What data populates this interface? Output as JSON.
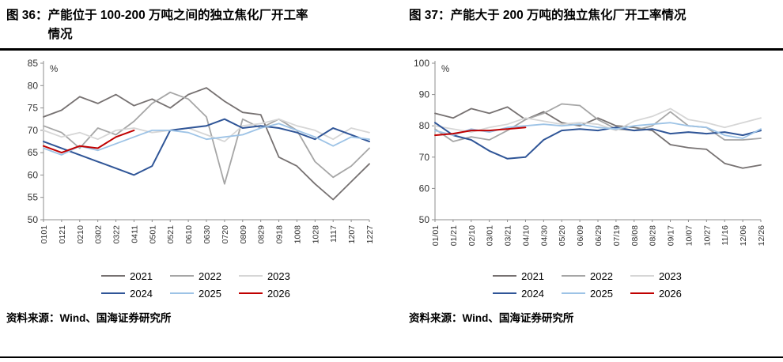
{
  "chart_data": [
    {
      "type": "line",
      "fig_label": "图 36：",
      "title": "产能位于 100-200 万吨之间的独立焦化厂开工率情况",
      "unit": "%",
      "ylim": [
        50,
        85
      ],
      "ytick_step": 5,
      "grid": false,
      "legend_position": "bottom",
      "source": "资料来源：Wind、国海证券研究所",
      "categories": [
        "0101",
        "0121",
        "0210",
        "0302",
        "0322",
        "0411",
        "0501",
        "0521",
        "0610",
        "0630",
        "0720",
        "0809",
        "0829",
        "0918",
        "1008",
        "1028",
        "1117",
        "1207",
        "1227"
      ],
      "series": [
        {
          "name": "2021",
          "color": "#767171",
          "values": [
            73,
            74.5,
            77.5,
            76,
            78,
            75.5,
            77,
            75,
            78,
            79.5,
            76.5,
            74,
            73.5,
            64,
            62,
            58,
            54.5,
            58.5,
            62.5
          ]
        },
        {
          "name": "2022",
          "color": "#a6a6a6",
          "values": [
            71,
            69.5,
            66,
            70.5,
            69,
            72,
            76,
            78.5,
            77,
            73,
            58,
            72.5,
            70.5,
            72.5,
            70,
            63,
            59.5,
            62,
            66
          ]
        },
        {
          "name": "2023",
          "color": "#d6d6d6",
          "values": [
            70,
            68.5,
            69.5,
            68,
            70,
            70.5,
            69.5,
            70,
            70.5,
            69,
            67.5,
            71,
            71.5,
            72.5,
            71,
            70,
            68,
            70.5,
            69.5
          ]
        },
        {
          "name": "2024",
          "color": "#2f5597",
          "values": [
            67.5,
            66,
            64.5,
            63,
            61.5,
            60,
            62,
            70,
            70.5,
            71,
            72.5,
            70.5,
            71,
            70.5,
            69.5,
            68,
            70.5,
            69,
            67.5
          ]
        },
        {
          "name": "2025",
          "color": "#9dc3e6",
          "values": [
            66,
            64.5,
            66.5,
            65.5,
            67,
            68.5,
            70,
            70,
            69.5,
            68,
            68.5,
            69,
            70.5,
            71.5,
            70,
            68.5,
            66.5,
            68.5,
            68
          ]
        },
        {
          "name": "2026",
          "color": "#c00000",
          "values": [
            66.5,
            65,
            66.5,
            66,
            68.5,
            70,
            null,
            null,
            null,
            null,
            null,
            null,
            null,
            null,
            null,
            null,
            null,
            null,
            null
          ]
        }
      ]
    },
    {
      "type": "line",
      "fig_label": "图 37：",
      "title": "产能大于 200 万吨的独立焦化厂开工率情况",
      "unit": "%",
      "ylim": [
        50,
        100
      ],
      "ytick_step": 10,
      "grid": false,
      "legend_position": "bottom",
      "source": "资料来源：Wind、国海证券研究所",
      "categories": [
        "01/01",
        "01/21",
        "02/10",
        "03/01",
        "03/21",
        "04/10",
        "04/30",
        "05/20",
        "06/09",
        "06/29",
        "07/19",
        "08/08",
        "08/28",
        "09/17",
        "10/07",
        "10/27",
        "11/16",
        "12/06",
        "12/26"
      ],
      "series": [
        {
          "name": "2021",
          "color": "#767171",
          "values": [
            84,
            82.5,
            85.5,
            84,
            86,
            82,
            84.5,
            81,
            80,
            82.5,
            80,
            79.5,
            78.5,
            74,
            73,
            72.5,
            68,
            66.5,
            67.5
          ]
        },
        {
          "name": "2022",
          "color": "#a6a6a6",
          "values": [
            79,
            75,
            76.5,
            75.5,
            78.5,
            82,
            84,
            87,
            86.5,
            82,
            79,
            78.5,
            80,
            84.5,
            80,
            79.5,
            75.5,
            75.5,
            76
          ]
        },
        {
          "name": "2023",
          "color": "#d6d6d6",
          "values": [
            80,
            79,
            78,
            79.5,
            80.5,
            82.5,
            81.5,
            80.5,
            81,
            80.5,
            78.5,
            81.5,
            83,
            85.5,
            82,
            81,
            79.5,
            81,
            82.5
          ]
        },
        {
          "name": "2024",
          "color": "#2f5597",
          "values": [
            81,
            77,
            75.5,
            72,
            69.5,
            70,
            75.5,
            78.5,
            79,
            78.5,
            79.5,
            78.5,
            79,
            77.5,
            78,
            77.5,
            78,
            77,
            78.5
          ]
        },
        {
          "name": "2025",
          "color": "#9dc3e6",
          "values": [
            78.5,
            77,
            79,
            78,
            79.5,
            80,
            80.5,
            80,
            80.5,
            79.5,
            79,
            80,
            80.5,
            81,
            80,
            79.5,
            77,
            76,
            79
          ]
        },
        {
          "name": "2026",
          "color": "#c00000",
          "values": [
            77,
            77.5,
            78.5,
            78.5,
            79,
            79.5,
            null,
            null,
            null,
            null,
            null,
            null,
            null,
            null,
            null,
            null,
            null,
            null,
            null
          ]
        }
      ]
    }
  ]
}
